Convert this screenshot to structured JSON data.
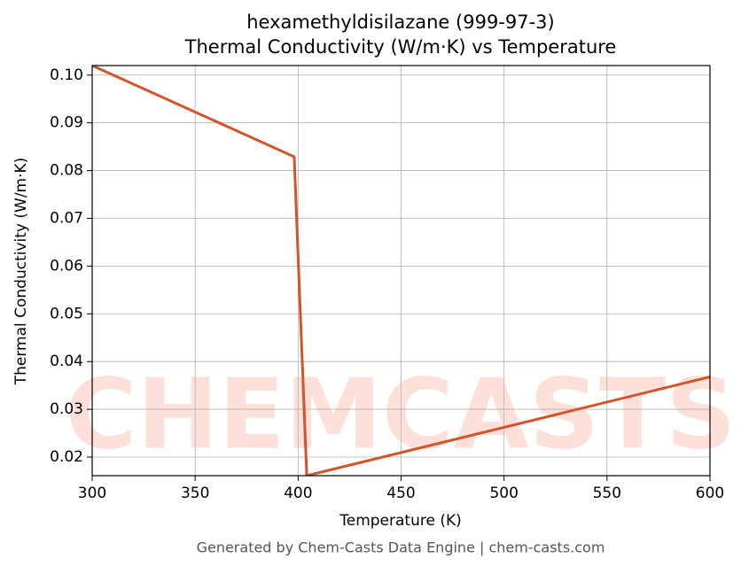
{
  "chart_data": {
    "type": "line",
    "title": "hexamethyldisilazane (999-97-3)",
    "subtitle": "Thermal Conductivity (W/m·K) vs Temperature",
    "x_label": "Temperature (K)",
    "y_label": "Thermal Conductivity (W/m·K)",
    "footer": "Generated by Chem-Casts Data Engine | chem-casts.com",
    "watermark": "CHEMCASTS",
    "x": [
      300,
      398.1,
      404.2,
      600
    ],
    "series": [
      {
        "name": "Thermal Conductivity",
        "color": "#d4542a",
        "values": [
          0.102,
          0.0829,
          0.0161,
          0.0368
        ]
      }
    ],
    "xlim": [
      300,
      600
    ],
    "ylim": [
      0.0161,
      0.102
    ],
    "xticks": [
      300,
      350,
      400,
      450,
      500,
      550,
      600
    ],
    "yticks": [
      0.02,
      0.03,
      0.04,
      0.05,
      0.06,
      0.07,
      0.08,
      0.09,
      {
        "value": 0.1,
        "label": "0.10"
      }
    ],
    "grid": true
  }
}
